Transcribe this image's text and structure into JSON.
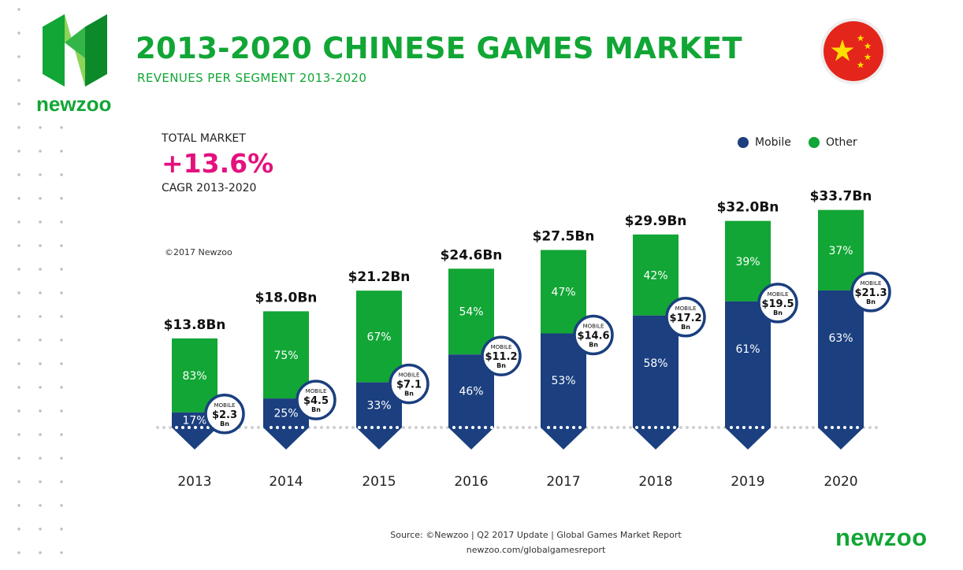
{
  "brand": {
    "name": "newzoo"
  },
  "header": {
    "title": "2013-2020 CHINESE GAMES MARKET",
    "subtitle": "REVENUES PER SEGMENT 2013-2020"
  },
  "summary": {
    "label": "TOTAL MARKET",
    "value": "+13.6%",
    "sub_label": "CAGR 2013-2020"
  },
  "copyright": "©2017 Newzoo",
  "source": {
    "line1": "Source: ©Newzoo | Q2 2017 Update | Global Games Market Report",
    "line2": "newzoo.com/globalgamesreport"
  },
  "colors": {
    "mobile": "#1b3f7f",
    "other": "#11a635",
    "accent": "#e4107e",
    "flag_red": "#e4251b",
    "flag_star": "#ffde00"
  },
  "chart_data": {
    "type": "bar",
    "stacked": true,
    "categories": [
      "2013",
      "2014",
      "2015",
      "2016",
      "2017",
      "2018",
      "2019",
      "2020"
    ],
    "totals": [
      13.8,
      18.0,
      21.2,
      24.6,
      27.5,
      29.9,
      32.0,
      33.7
    ],
    "total_labels": [
      "$13.8Bn",
      "$18.0Bn",
      "$21.2Bn",
      "$24.6Bn",
      "$27.5Bn",
      "$29.9Bn",
      "$32.0Bn",
      "$33.7Bn"
    ],
    "series": [
      {
        "name": "Mobile",
        "percent": [
          17,
          25,
          33,
          46,
          53,
          58,
          61,
          63
        ],
        "percent_labels": [
          "17%",
          "25%",
          "33%",
          "46%",
          "53%",
          "58%",
          "61%",
          "63%"
        ],
        "values": [
          2.3,
          4.5,
          7.1,
          11.2,
          14.6,
          17.2,
          19.5,
          21.3
        ]
      },
      {
        "name": "Other",
        "percent": [
          83,
          75,
          67,
          54,
          47,
          42,
          39,
          37
        ],
        "percent_labels": [
          "83%",
          "75%",
          "67%",
          "54%",
          "47%",
          "42%",
          "39%",
          "37%"
        ]
      }
    ],
    "callouts": {
      "top": "MOBILE",
      "values": [
        "$2.3",
        "$4.5",
        "$7.1",
        "$11.2",
        "$14.6",
        "$17.2",
        "$19.5",
        "$21.3"
      ],
      "unit": "Bn"
    },
    "legend_position": "top-right",
    "grid": false
  }
}
